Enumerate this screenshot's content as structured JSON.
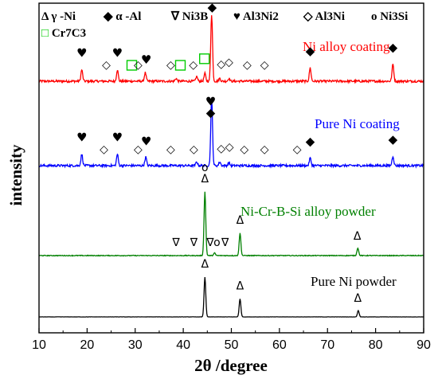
{
  "chart_data": {
    "type": "line",
    "xlabel": "2θ /degree",
    "ylabel": "intensity",
    "xlim": [
      10,
      90
    ],
    "xticks": [
      10,
      20,
      30,
      40,
      50,
      60,
      70,
      80,
      90
    ],
    "grid": false,
    "legend": {
      "placement": "top",
      "entries": [
        {
          "symbol": "Δ",
          "label": "γ -Ni"
        },
        {
          "symbol": "◆",
          "label": "α -Al"
        },
        {
          "symbol": "∇",
          "label": "Ni3B"
        },
        {
          "symbol": "♥",
          "label": "Al3Ni2"
        },
        {
          "symbol": "◇",
          "label": "Al3Ni"
        },
        {
          "symbol": "o",
          "label": "Ni3Si"
        },
        {
          "symbol": "□",
          "label": "Cr7C3",
          "color": "#00cc00"
        }
      ]
    },
    "series": [
      {
        "name": "Ni alloy coating",
        "color": "#ff0000",
        "baseline": 0.14,
        "noise": 0.012,
        "peaks": [
          {
            "x": 18.9,
            "h": 0.12
          },
          {
            "x": 26.3,
            "h": 0.12
          },
          {
            "x": 32.1,
            "h": 0.09
          },
          {
            "x": 38.5,
            "h": 0.03
          },
          {
            "x": 42.8,
            "h": 0.05
          },
          {
            "x": 44.5,
            "h": 0.08
          },
          {
            "x": 45.9,
            "h": 0.7
          },
          {
            "x": 47.6,
            "h": 0.03
          },
          {
            "x": 49.5,
            "h": 0.03
          },
          {
            "x": 66.4,
            "h": 0.14
          },
          {
            "x": 83.6,
            "h": 0.18
          }
        ],
        "markers": [
          {
            "x": 18.9,
            "s": "♥"
          },
          {
            "x": 24.0,
            "s": "◇"
          },
          {
            "x": 26.3,
            "s": "♥"
          },
          {
            "x": 29.3,
            "s": "□"
          },
          {
            "x": 30.6,
            "s": "◇"
          },
          {
            "x": 32.3,
            "s": "♥"
          },
          {
            "x": 37.4,
            "s": "◇"
          },
          {
            "x": 39.4,
            "s": "□"
          },
          {
            "x": 42.1,
            "s": "◇"
          },
          {
            "x": 44.4,
            "s": "□"
          },
          {
            "x": 46.0,
            "s": "◆"
          },
          {
            "x": 46.0,
            "s": "♥"
          },
          {
            "x": 47.9,
            "s": "◇"
          },
          {
            "x": 49.5,
            "s": "◇"
          },
          {
            "x": 53.3,
            "s": "◇"
          },
          {
            "x": 56.9,
            "s": "◇"
          },
          {
            "x": 66.4,
            "s": "◆"
          },
          {
            "x": 83.6,
            "s": "◆"
          }
        ]
      },
      {
        "name": "Pure Ni coating",
        "color": "#0000ff",
        "baseline": 0.12,
        "noise": 0.012,
        "peaks": [
          {
            "x": 18.9,
            "h": 0.12
          },
          {
            "x": 26.3,
            "h": 0.12
          },
          {
            "x": 32.2,
            "h": 0.09
          },
          {
            "x": 42.8,
            "h": 0.04
          },
          {
            "x": 45.9,
            "h": 0.7
          },
          {
            "x": 47.6,
            "h": 0.04
          },
          {
            "x": 49.5,
            "h": 0.03
          },
          {
            "x": 66.4,
            "h": 0.08
          },
          {
            "x": 83.6,
            "h": 0.1
          }
        ],
        "markers": [
          {
            "x": 18.9,
            "s": "♥"
          },
          {
            "x": 23.5,
            "s": "◇"
          },
          {
            "x": 26.3,
            "s": "♥"
          },
          {
            "x": 30.6,
            "s": "◇"
          },
          {
            "x": 32.3,
            "s": "♥"
          },
          {
            "x": 37.4,
            "s": "◇"
          },
          {
            "x": 42.2,
            "s": "◇"
          },
          {
            "x": 45.7,
            "s": "◆"
          },
          {
            "x": 45.7,
            "s": "♥"
          },
          {
            "x": 47.9,
            "s": "◇"
          },
          {
            "x": 49.6,
            "s": "◇"
          },
          {
            "x": 52.7,
            "s": "◇"
          },
          {
            "x": 56.9,
            "s": "◇"
          },
          {
            "x": 63.7,
            "s": "◇"
          },
          {
            "x": 66.4,
            "s": "◆"
          },
          {
            "x": 83.6,
            "s": "◆"
          }
        ]
      },
      {
        "name": "Ni-Cr-B-Si alloy powder",
        "color": "#008000",
        "baseline": 0.06,
        "noise": 0.006,
        "peaks": [
          {
            "x": 44.5,
            "h": 1.0
          },
          {
            "x": 46.5,
            "h": 0.04
          },
          {
            "x": 51.8,
            "h": 0.35
          },
          {
            "x": 76.3,
            "h": 0.12
          }
        ],
        "markers": [
          {
            "x": 44.5,
            "s": "Δ"
          },
          {
            "x": 44.5,
            "s": "o"
          },
          {
            "x": 38.5,
            "s": "∇"
          },
          {
            "x": 42.2,
            "s": "∇"
          },
          {
            "x": 45.6,
            "s": "∇"
          },
          {
            "x": 47.0,
            "s": "o"
          },
          {
            "x": 48.7,
            "s": "∇"
          },
          {
            "x": 51.8,
            "s": "Δ"
          },
          {
            "x": 76.2,
            "s": "Δ"
          }
        ]
      },
      {
        "name": "Pure Ni powder",
        "color": "#000000",
        "baseline": 0.02,
        "noise": 0.003,
        "peaks": [
          {
            "x": 44.5,
            "h": 1.0
          },
          {
            "x": 51.8,
            "h": 0.45
          },
          {
            "x": 76.4,
            "h": 0.16
          }
        ],
        "markers": [
          {
            "x": 44.5,
            "s": "Δ"
          },
          {
            "x": 51.8,
            "s": "Δ"
          },
          {
            "x": 76.3,
            "s": "Δ"
          }
        ]
      }
    ]
  }
}
